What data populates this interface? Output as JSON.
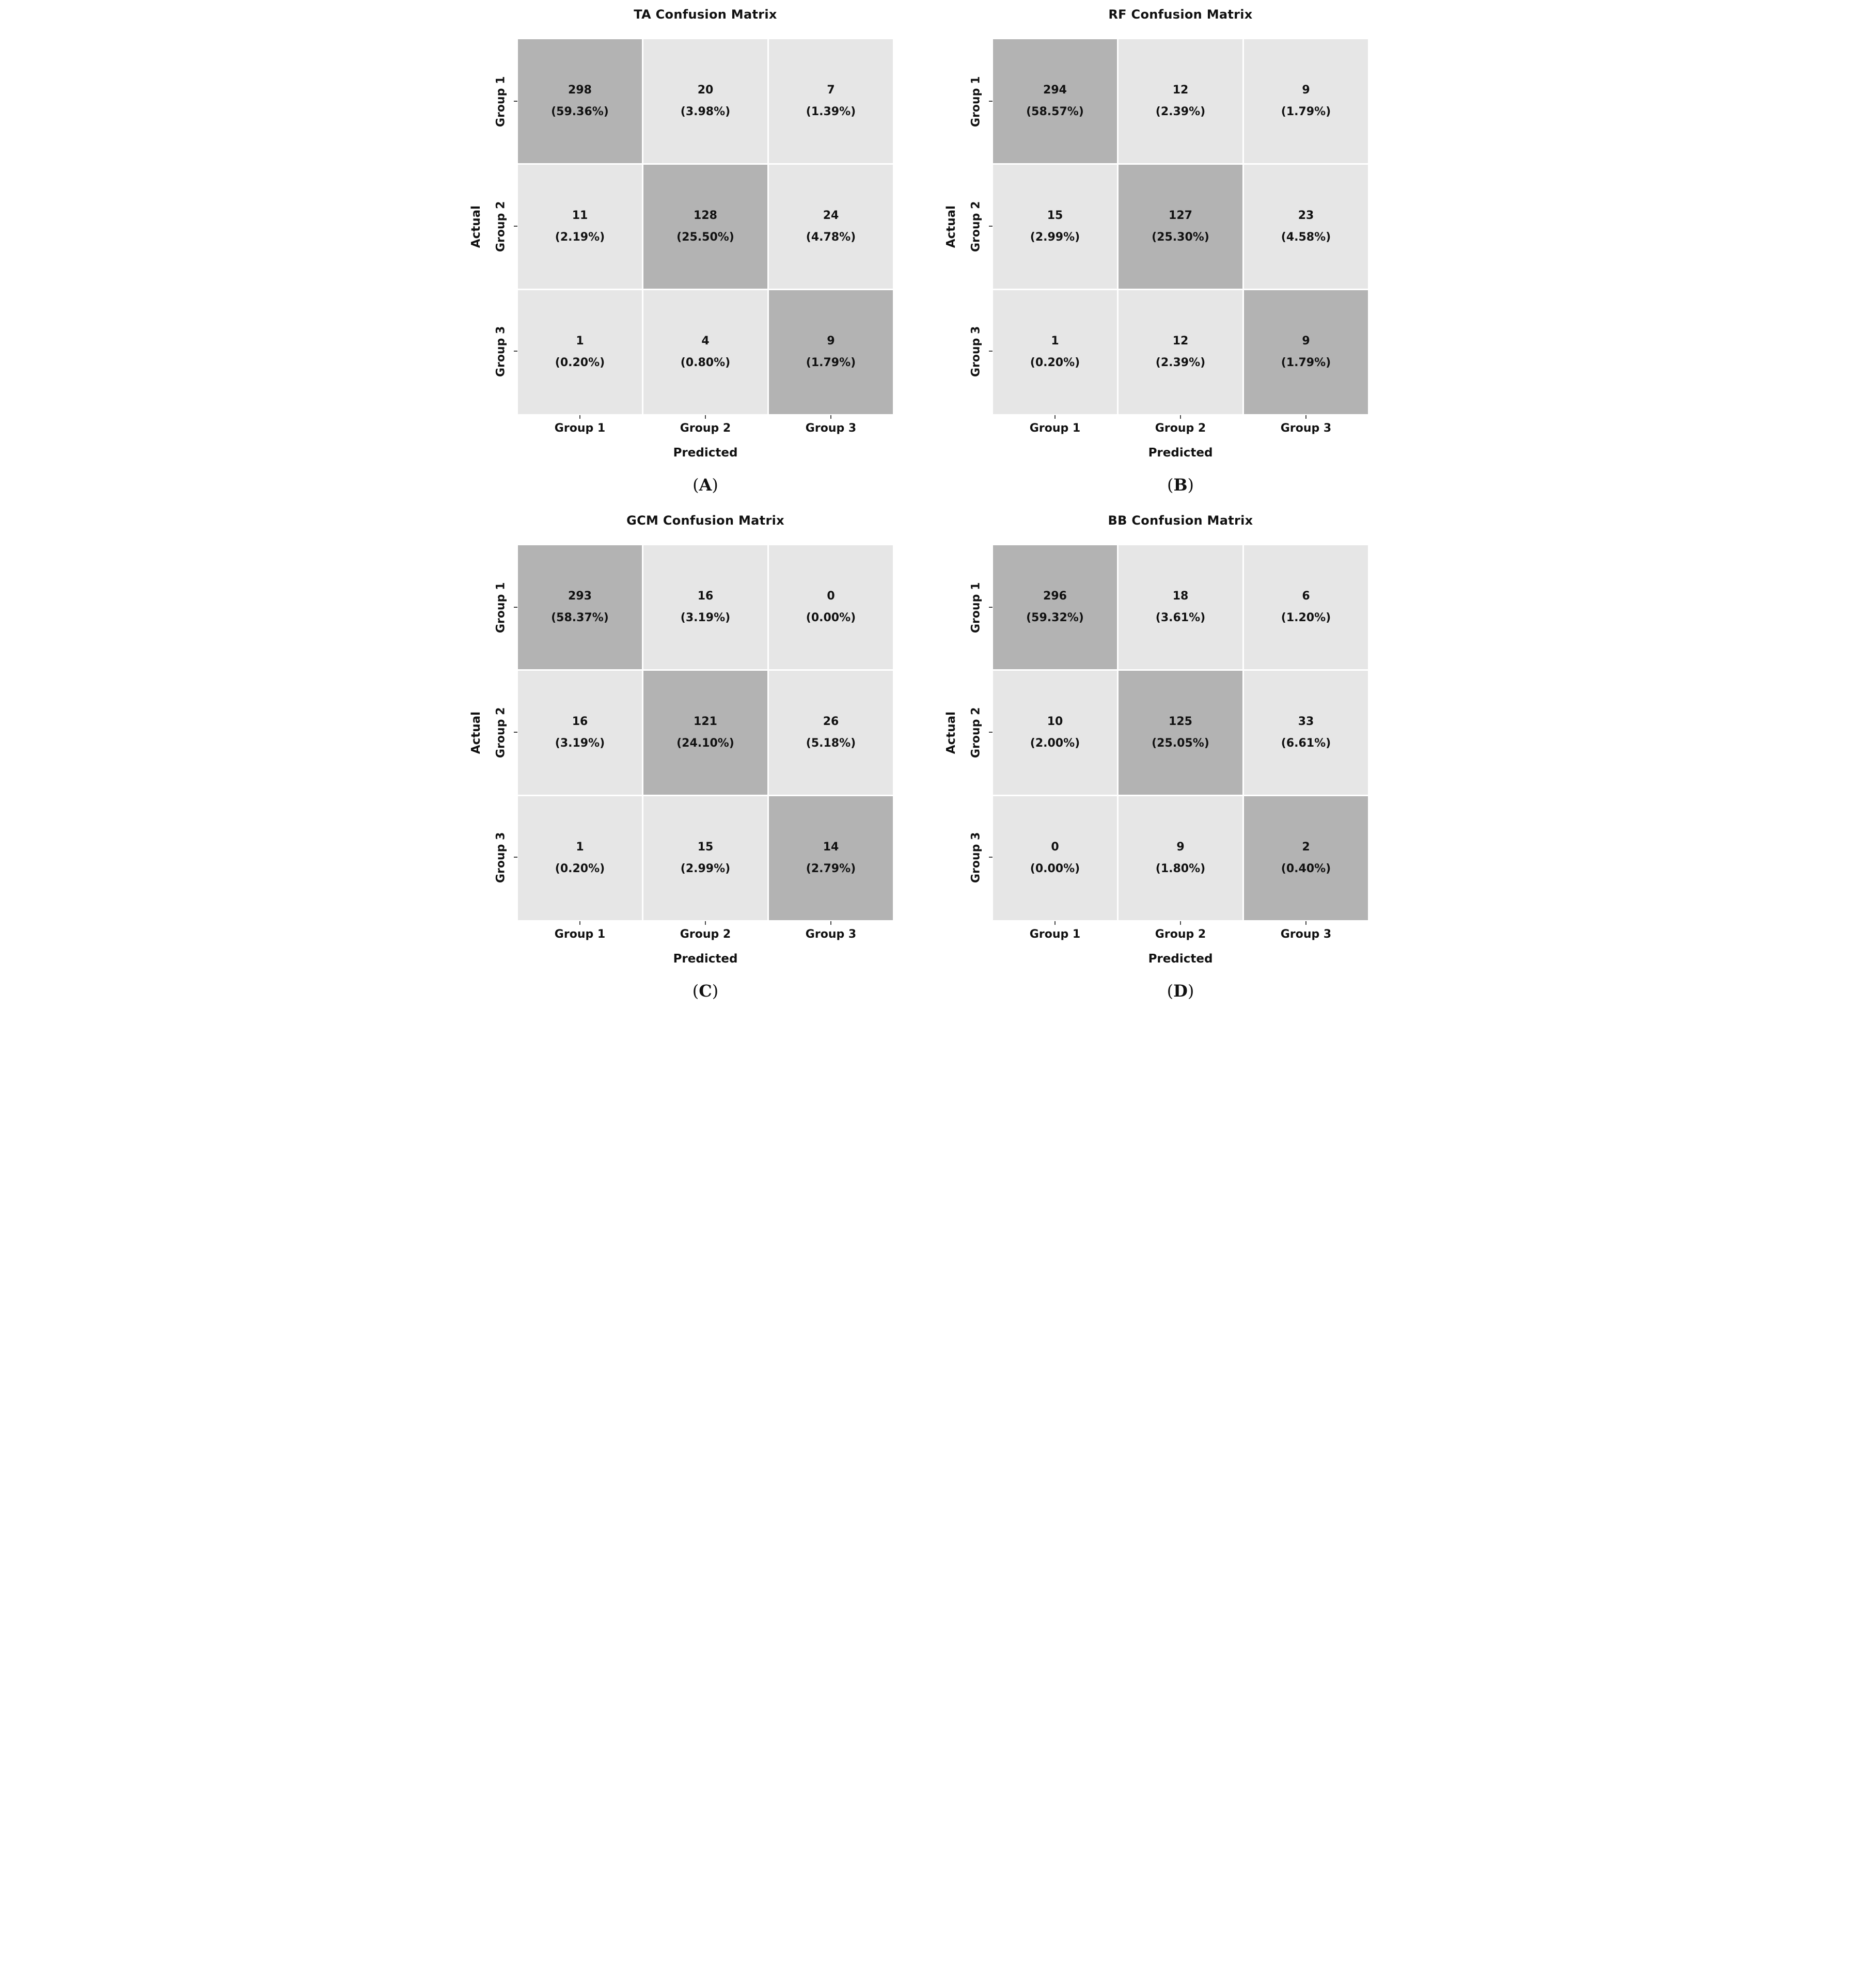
{
  "axes": {
    "ylabel": "Actual",
    "xlabel": "Predicted",
    "row_labels": [
      "Group 1",
      "Group 2",
      "Group 3"
    ],
    "col_labels": [
      "Group 1",
      "Group 2",
      "Group 3"
    ]
  },
  "captions": {
    "open": "(",
    "close": ")"
  },
  "colors": {
    "diagonal": "#b3b3b3",
    "off_diagonal": "#e6e6e6",
    "tick": "#444444",
    "text": "#111111",
    "background": "#ffffff"
  },
  "panels": [
    {
      "id": "A",
      "title": "TA Confusion Matrix",
      "caption_letter": "A",
      "cells": [
        {
          "count": "298",
          "pct": "(59.36%)"
        },
        {
          "count": "20",
          "pct": "(3.98%)"
        },
        {
          "count": "7",
          "pct": "(1.39%)"
        },
        {
          "count": "11",
          "pct": "(2.19%)"
        },
        {
          "count": "128",
          "pct": "(25.50%)"
        },
        {
          "count": "24",
          "pct": "(4.78%)"
        },
        {
          "count": "1",
          "pct": "(0.20%)"
        },
        {
          "count": "4",
          "pct": "(0.80%)"
        },
        {
          "count": "9",
          "pct": "(1.79%)"
        }
      ]
    },
    {
      "id": "B",
      "title": "RF Confusion Matrix",
      "caption_letter": "B",
      "cells": [
        {
          "count": "294",
          "pct": "(58.57%)"
        },
        {
          "count": "12",
          "pct": "(2.39%)"
        },
        {
          "count": "9",
          "pct": "(1.79%)"
        },
        {
          "count": "15",
          "pct": "(2.99%)"
        },
        {
          "count": "127",
          "pct": "(25.30%)"
        },
        {
          "count": "23",
          "pct": "(4.58%)"
        },
        {
          "count": "1",
          "pct": "(0.20%)"
        },
        {
          "count": "12",
          "pct": "(2.39%)"
        },
        {
          "count": "9",
          "pct": "(1.79%)"
        }
      ]
    },
    {
      "id": "C",
      "title": "GCM Confusion Matrix",
      "caption_letter": "C",
      "cells": [
        {
          "count": "293",
          "pct": "(58.37%)"
        },
        {
          "count": "16",
          "pct": "(3.19%)"
        },
        {
          "count": "0",
          "pct": "(0.00%)"
        },
        {
          "count": "16",
          "pct": "(3.19%)"
        },
        {
          "count": "121",
          "pct": "(24.10%)"
        },
        {
          "count": "26",
          "pct": "(5.18%)"
        },
        {
          "count": "1",
          "pct": "(0.20%)"
        },
        {
          "count": "15",
          "pct": "(2.99%)"
        },
        {
          "count": "14",
          "pct": "(2.79%)"
        }
      ]
    },
    {
      "id": "D",
      "title": "BB Confusion Matrix",
      "caption_letter": "D",
      "cells": [
        {
          "count": "296",
          "pct": "(59.32%)"
        },
        {
          "count": "18",
          "pct": "(3.61%)"
        },
        {
          "count": "6",
          "pct": "(1.20%)"
        },
        {
          "count": "10",
          "pct": "(2.00%)"
        },
        {
          "count": "125",
          "pct": "(25.05%)"
        },
        {
          "count": "33",
          "pct": "(6.61%)"
        },
        {
          "count": "0",
          "pct": "(0.00%)"
        },
        {
          "count": "9",
          "pct": "(1.80%)"
        },
        {
          "count": "2",
          "pct": "(0.40%)"
        }
      ]
    }
  ],
  "chart_data": [
    {
      "type": "heatmap",
      "title": "TA Confusion Matrix",
      "xlabel": "Predicted",
      "ylabel": "Actual",
      "x_categories": [
        "Group 1",
        "Group 2",
        "Group 3"
      ],
      "y_categories": [
        "Group 1",
        "Group 2",
        "Group 3"
      ],
      "counts": [
        [
          298,
          20,
          7
        ],
        [
          11,
          128,
          24
        ],
        [
          1,
          4,
          9
        ]
      ],
      "percents": [
        [
          "59.36%",
          "3.98%",
          "1.39%"
        ],
        [
          "2.19%",
          "25.50%",
          "4.78%"
        ],
        [
          "0.20%",
          "0.80%",
          "1.79%"
        ]
      ],
      "caption": "(A)",
      "shading": "diagonal cells dark gray, off-diagonal light gray",
      "legend": "none",
      "grid": "white cell separators"
    },
    {
      "type": "heatmap",
      "title": "RF Confusion Matrix",
      "xlabel": "Predicted",
      "ylabel": "Actual",
      "x_categories": [
        "Group 1",
        "Group 2",
        "Group 3"
      ],
      "y_categories": [
        "Group 1",
        "Group 2",
        "Group 3"
      ],
      "counts": [
        [
          294,
          12,
          9
        ],
        [
          15,
          127,
          23
        ],
        [
          1,
          12,
          9
        ]
      ],
      "percents": [
        [
          "58.57%",
          "2.39%",
          "1.79%"
        ],
        [
          "2.99%",
          "25.30%",
          "4.58%"
        ],
        [
          "0.20%",
          "2.39%",
          "1.79%"
        ]
      ],
      "caption": "(B)",
      "shading": "diagonal cells dark gray, off-diagonal light gray",
      "legend": "none",
      "grid": "white cell separators"
    },
    {
      "type": "heatmap",
      "title": "GCM Confusion Matrix",
      "xlabel": "Predicted",
      "ylabel": "Actual",
      "x_categories": [
        "Group 1",
        "Group 2",
        "Group 3"
      ],
      "y_categories": [
        "Group 1",
        "Group 2",
        "Group 3"
      ],
      "counts": [
        [
          293,
          16,
          0
        ],
        [
          16,
          121,
          26
        ],
        [
          1,
          15,
          14
        ]
      ],
      "percents": [
        [
          "58.37%",
          "3.19%",
          "0.00%"
        ],
        [
          "3.19%",
          "24.10%",
          "5.18%"
        ],
        [
          "0.20%",
          "2.99%",
          "2.79%"
        ]
      ],
      "caption": "(C)",
      "shading": "diagonal cells dark gray, off-diagonal light gray",
      "legend": "none",
      "grid": "white cell separators"
    },
    {
      "type": "heatmap",
      "title": "BB Confusion Matrix",
      "xlabel": "Predicted",
      "ylabel": "Actual",
      "x_categories": [
        "Group 1",
        "Group 2",
        "Group 3"
      ],
      "y_categories": [
        "Group 1",
        "Group 2",
        "Group 3"
      ],
      "counts": [
        [
          296,
          18,
          6
        ],
        [
          10,
          125,
          33
        ],
        [
          0,
          9,
          2
        ]
      ],
      "percents": [
        [
          "59.32%",
          "3.61%",
          "1.20%"
        ],
        [
          "2.00%",
          "25.05%",
          "6.61%"
        ],
        [
          "0.00%",
          "1.80%",
          "0.40%"
        ]
      ],
      "caption": "(D)",
      "shading": "diagonal cells dark gray, off-diagonal light gray",
      "legend": "none",
      "grid": "white cell separators"
    }
  ]
}
